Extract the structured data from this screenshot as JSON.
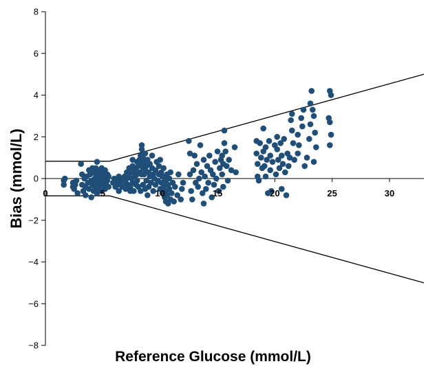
{
  "chart_data": {
    "type": "scatter",
    "title": "",
    "xlabel": "Reference Glucose (mmol/L)",
    "ylabel": "Bias (mmol/L)",
    "xlim": [
      0,
      33
    ],
    "ylim": [
      -8,
      8
    ],
    "xticks": [
      "0",
      "5",
      "10",
      "15",
      "20",
      "25",
      "30"
    ],
    "yticks": [
      "-8",
      "-6",
      "-4",
      "-2",
      "0",
      "2",
      "4",
      "6",
      "8"
    ],
    "grid": false,
    "point_color": "#1f4e79",
    "boundary_lines": [
      {
        "x": [
          0,
          5.6,
          33
        ],
        "y": [
          0.83,
          0.83,
          5.0
        ]
      },
      {
        "x": [
          0,
          5.6,
          33
        ],
        "y": [
          -0.83,
          -0.83,
          -5.0
        ]
      }
    ],
    "series": [
      {
        "points": [
          [
            1.6,
            -0.3
          ],
          [
            1.7,
            0.0
          ],
          [
            1.6,
            -0.1
          ],
          [
            2.4,
            -0.4
          ],
          [
            2.4,
            -0.2
          ],
          [
            2.5,
            -0.5
          ],
          [
            2.6,
            -0.3
          ],
          [
            2.8,
            -0.7
          ],
          [
            2.7,
            -0.1
          ],
          [
            3.1,
            0.7
          ],
          [
            3.2,
            0.2
          ],
          [
            3.2,
            -0.3
          ],
          [
            3.3,
            -0.6
          ],
          [
            3.4,
            0.0
          ],
          [
            3.5,
            -0.4
          ],
          [
            3.5,
            -0.8
          ],
          [
            3.6,
            0.1
          ],
          [
            3.7,
            -0.2
          ],
          [
            3.8,
            0.4
          ],
          [
            3.8,
            -0.5
          ],
          [
            3.9,
            0.2
          ],
          [
            4.0,
            -0.1
          ],
          [
            4.0,
            -0.9
          ],
          [
            4.1,
            0.5
          ],
          [
            4.1,
            -0.3
          ],
          [
            4.2,
            0.3
          ],
          [
            4.2,
            -0.6
          ],
          [
            4.3,
            0.0
          ],
          [
            4.3,
            -0.4
          ],
          [
            4.4,
            0.5
          ],
          [
            4.4,
            0.2
          ],
          [
            4.4,
            -0.2
          ],
          [
            4.5,
            0.8
          ],
          [
            4.5,
            0.3
          ],
          [
            4.5,
            -0.7
          ],
          [
            4.6,
            0.1
          ],
          [
            4.6,
            -0.5
          ],
          [
            4.7,
            0.4
          ],
          [
            4.7,
            -0.1
          ],
          [
            4.7,
            -0.4
          ],
          [
            4.8,
            0.2
          ],
          [
            4.8,
            -0.2
          ],
          [
            4.9,
            0.5
          ],
          [
            4.9,
            0.0
          ],
          [
            4.9,
            -0.6
          ],
          [
            5.0,
            0.3
          ],
          [
            5.0,
            -0.3
          ],
          [
            5.1,
            0.1
          ],
          [
            5.1,
            -0.2
          ],
          [
            5.2,
            0.4
          ],
          [
            5.2,
            -0.5
          ],
          [
            5.3,
            0.0
          ],
          [
            5.3,
            -0.3
          ],
          [
            5.4,
            0.2
          ],
          [
            5.4,
            -0.1
          ],
          [
            5.5,
            -0.4
          ],
          [
            5.5,
            0.1
          ],
          [
            5.9,
            -0.2
          ],
          [
            6.0,
            0.0
          ],
          [
            6.1,
            -0.4
          ],
          [
            6.2,
            -0.1
          ],
          [
            6.3,
            -0.3
          ],
          [
            6.4,
            0.1
          ],
          [
            6.4,
            -0.6
          ],
          [
            6.5,
            -0.2
          ],
          [
            6.6,
            0.0
          ],
          [
            6.7,
            -0.4
          ],
          [
            6.8,
            -0.1
          ],
          [
            6.9,
            0.1
          ],
          [
            7.0,
            -0.5
          ],
          [
            7.0,
            -0.2
          ],
          [
            7.1,
            0.3
          ],
          [
            7.1,
            0.0
          ],
          [
            7.2,
            -0.3
          ],
          [
            7.3,
            0.5
          ],
          [
            7.3,
            0.2
          ],
          [
            7.4,
            -0.4
          ],
          [
            7.4,
            -0.6
          ],
          [
            7.5,
            0.4
          ],
          [
            7.5,
            0.0
          ],
          [
            7.6,
            0.9
          ],
          [
            7.6,
            0.6
          ],
          [
            7.6,
            -0.2
          ],
          [
            7.7,
            0.3
          ],
          [
            7.7,
            -0.6
          ],
          [
            7.8,
            0.1
          ],
          [
            7.9,
            -0.3
          ],
          [
            7.9,
            0.5
          ],
          [
            8.0,
            0.8
          ],
          [
            8.0,
            0.2
          ],
          [
            8.0,
            -0.1
          ],
          [
            8.1,
            0.6
          ],
          [
            8.1,
            -0.4
          ],
          [
            8.2,
            0.9
          ],
          [
            8.2,
            0.3
          ],
          [
            8.3,
            1.1
          ],
          [
            8.3,
            -0.6
          ],
          [
            8.4,
            1.6
          ],
          [
            8.4,
            1.4
          ],
          [
            8.4,
            0.7
          ],
          [
            8.4,
            0.2
          ],
          [
            8.5,
            1.0
          ],
          [
            8.5,
            0.5
          ],
          [
            8.5,
            -0.3
          ],
          [
            8.6,
            0.8
          ],
          [
            8.6,
            0.2
          ],
          [
            8.7,
            1.2
          ],
          [
            8.7,
            0.4
          ],
          [
            8.7,
            -0.5
          ],
          [
            8.8,
            0.6
          ],
          [
            8.8,
            -0.1
          ],
          [
            8.9,
            0.9
          ],
          [
            8.9,
            -0.8
          ],
          [
            9.0,
            0.3
          ],
          [
            9.0,
            -0.4
          ],
          [
            9.1,
            0.7
          ],
          [
            9.1,
            0.1
          ],
          [
            9.2,
            -0.2
          ],
          [
            9.3,
            0.5
          ],
          [
            9.3,
            1.1
          ],
          [
            9.4,
            0.2
          ],
          [
            9.4,
            -0.6
          ],
          [
            9.5,
            0.0
          ],
          [
            9.6,
            0.4
          ],
          [
            9.6,
            -0.3
          ],
          [
            9.7,
            0.8
          ],
          [
            9.8,
            -0.1
          ],
          [
            9.9,
            0.6
          ],
          [
            9.9,
            0.2
          ],
          [
            10.0,
            0.9
          ],
          [
            10.0,
            -0.5
          ],
          [
            10.1,
            0.3
          ],
          [
            10.1,
            -0.2
          ],
          [
            10.2,
            0.1
          ],
          [
            10.2,
            -0.7
          ],
          [
            10.3,
            0.5
          ],
          [
            10.3,
            -0.4
          ],
          [
            10.4,
            -0.9
          ],
          [
            10.4,
            0.0
          ],
          [
            10.5,
            -1.1
          ],
          [
            10.5,
            -0.6
          ],
          [
            10.5,
            -0.2
          ],
          [
            10.6,
            0.2
          ],
          [
            10.6,
            -0.8
          ],
          [
            10.7,
            -1.2
          ],
          [
            10.7,
            -0.3
          ],
          [
            10.8,
            0.0
          ],
          [
            10.8,
            -0.5
          ],
          [
            10.9,
            -1.0
          ],
          [
            10.9,
            0.3
          ],
          [
            11.0,
            -0.7
          ],
          [
            11.1,
            -0.2
          ],
          [
            11.2,
            -1.1
          ],
          [
            11.3,
            -0.4
          ],
          [
            11.5,
            -0.8
          ],
          [
            11.6,
            0.2
          ],
          [
            11.8,
            -1.0
          ],
          [
            11.9,
            -0.5
          ],
          [
            12.0,
            -0.2
          ],
          [
            12.5,
            1.8
          ],
          [
            12.6,
            1.2
          ],
          [
            12.6,
            0.2
          ],
          [
            12.7,
            -0.6
          ],
          [
            12.8,
            -1.0
          ],
          [
            12.9,
            0.4
          ],
          [
            13.0,
            1.1
          ],
          [
            13.1,
            -0.2
          ],
          [
            13.2,
            0.7
          ],
          [
            13.3,
            -0.4
          ],
          [
            13.4,
            0.0
          ],
          [
            13.5,
            1.6
          ],
          [
            13.6,
            0.3
          ],
          [
            13.7,
            -0.7
          ],
          [
            13.8,
            -1.2
          ],
          [
            13.8,
            0.9
          ],
          [
            13.9,
            0.1
          ],
          [
            14.0,
            -0.5
          ],
          [
            14.1,
            0.6
          ],
          [
            14.2,
            -0.2
          ],
          [
            14.3,
            1.1
          ],
          [
            14.4,
            0.4
          ],
          [
            14.5,
            -0.9
          ],
          [
            14.6,
            0.2
          ],
          [
            14.7,
            -0.3
          ],
          [
            14.8,
            0.8
          ],
          [
            14.9,
            0.0
          ],
          [
            15.0,
            1.3
          ],
          [
            15.1,
            -0.6
          ],
          [
            15.2,
            0.5
          ],
          [
            15.3,
            0.9
          ],
          [
            15.4,
            1.1
          ],
          [
            15.4,
            0.2
          ],
          [
            15.5,
            0.7
          ],
          [
            15.5,
            -0.4
          ],
          [
            15.6,
            2.3
          ],
          [
            15.6,
            1.7
          ],
          [
            15.7,
            1.3
          ],
          [
            15.8,
            0.6
          ],
          [
            15.9,
            -0.1
          ],
          [
            16.0,
            0.9
          ],
          [
            16.2,
            0.4
          ],
          [
            16.5,
            1.5
          ],
          [
            16.6,
            0.3
          ],
          [
            18.4,
            1.8
          ],
          [
            18.4,
            1.2
          ],
          [
            18.5,
            0.7
          ],
          [
            18.5,
            0.1
          ],
          [
            18.6,
            -0.1
          ],
          [
            18.7,
            1.7
          ],
          [
            18.8,
            1.0
          ],
          [
            18.9,
            0.5
          ],
          [
            19.0,
            2.4
          ],
          [
            19.0,
            1.3
          ],
          [
            19.1,
            0.6
          ],
          [
            19.2,
            1.5
          ],
          [
            19.2,
            0.1
          ],
          [
            19.3,
            0.9
          ],
          [
            19.4,
            -0.7
          ],
          [
            19.5,
            1.8
          ],
          [
            19.6,
            1.1
          ],
          [
            19.6,
            0.4
          ],
          [
            19.7,
            -0.6
          ],
          [
            19.8,
            0.8
          ],
          [
            20.0,
            1.6
          ],
          [
            20.1,
            0.2
          ],
          [
            20.2,
            2.0
          ],
          [
            20.2,
            1.4
          ],
          [
            20.3,
            0.9
          ],
          [
            20.4,
            0.5
          ],
          [
            20.5,
            1.7
          ],
          [
            20.6,
            1.1
          ],
          [
            20.6,
            -0.5
          ],
          [
            20.7,
            0.7
          ],
          [
            20.8,
            1.9
          ],
          [
            20.9,
            0.3
          ],
          [
            21.0,
            -0.8
          ],
          [
            21.1,
            1.2
          ],
          [
            21.2,
            0.6
          ],
          [
            21.3,
            1.0
          ],
          [
            21.4,
            2.8
          ],
          [
            21.5,
            2.3
          ],
          [
            21.5,
            3.1
          ],
          [
            21.6,
            1.7
          ],
          [
            21.7,
            0.9
          ],
          [
            22.0,
            1.2
          ],
          [
            22.0,
            2.1
          ],
          [
            22.1,
            1.6
          ],
          [
            22.3,
            2.9
          ],
          [
            22.4,
            2.5
          ],
          [
            22.5,
            3.3
          ],
          [
            22.6,
            0.6
          ],
          [
            22.8,
            1.0
          ],
          [
            23.0,
            1.9
          ],
          [
            23.1,
            2.6
          ],
          [
            23.1,
            3.6
          ],
          [
            23.2,
            4.2
          ],
          [
            23.3,
            3.3
          ],
          [
            23.4,
            3.0
          ],
          [
            23.5,
            2.2
          ],
          [
            23.6,
            1.5
          ],
          [
            23.4,
            0.8
          ],
          [
            24.8,
            4.2
          ],
          [
            24.9,
            4.0
          ],
          [
            24.7,
            2.9
          ],
          [
            24.8,
            2.7
          ],
          [
            24.9,
            2.1
          ],
          [
            24.8,
            1.6
          ]
        ]
      }
    ]
  }
}
